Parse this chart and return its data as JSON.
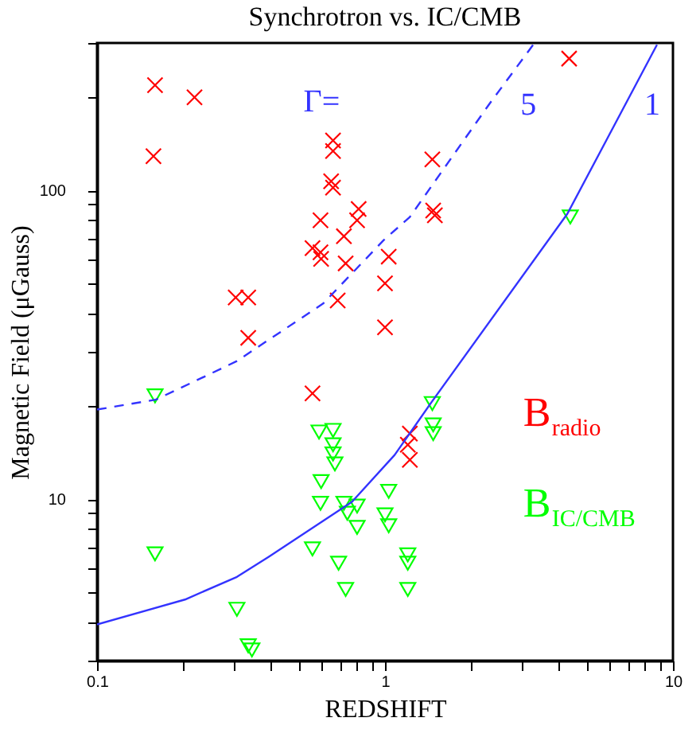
{
  "chart_data": {
    "type": "scatter",
    "title": "Synchrotron vs. IC/CMB",
    "xlabel": "REDSHIFT",
    "ylabel": "Magnetic Field (μGauss)",
    "log": "xy",
    "grid": false,
    "legend": "right",
    "xlim": [
      0.1,
      10
    ],
    "ylim": [
      3,
      300
    ],
    "xticks": [
      0.1,
      {
        "value": 0.2,
        "label": null
      },
      {
        "value": 0.3,
        "label": null
      },
      {
        "value": 0.4,
        "label": null
      },
      {
        "value": 0.5,
        "label": null
      },
      {
        "value": 0.6,
        "label": null
      },
      {
        "value": 0.7,
        "label": null
      },
      {
        "value": 0.8,
        "label": null
      },
      {
        "value": 0.9,
        "label": null
      },
      1,
      {
        "value": 2,
        "label": null
      },
      {
        "value": 3,
        "label": null
      },
      {
        "value": 4,
        "label": null
      },
      {
        "value": 5,
        "label": null
      },
      {
        "value": 6,
        "label": null
      },
      {
        "value": 7,
        "label": null
      },
      {
        "value": 8,
        "label": null
      },
      {
        "value": 9,
        "label": null
      },
      10
    ],
    "yticks": [
      {
        "value": 3,
        "label": null
      },
      {
        "value": 4,
        "label": null
      },
      {
        "value": 5,
        "label": null
      },
      {
        "value": 6,
        "label": null
      },
      {
        "value": 7,
        "label": null
      },
      {
        "value": 8,
        "label": null
      },
      {
        "value": 9,
        "label": null
      },
      10,
      {
        "value": 20,
        "label": null
      },
      {
        "value": 30,
        "label": null
      },
      {
        "value": 40,
        "label": null
      },
      {
        "value": 50,
        "label": null
      },
      {
        "value": 60,
        "label": null
      },
      {
        "value": 70,
        "label": null
      },
      {
        "value": 80,
        "label": null
      },
      {
        "value": 90,
        "label": null
      },
      100,
      {
        "value": 200,
        "label": null
      },
      {
        "value": 300,
        "label": null
      }
    ],
    "series": [
      {
        "name": "B$_{radio}$",
        "marker": "cross",
        "color": "#ff0000",
        "x": [
          0.159,
          0.157,
          0.218,
          0.303,
          0.335,
          0.335,
          0.66,
          0.66,
          0.65,
          0.66,
          0.597,
          0.56,
          0.597,
          0.6,
          0.72,
          0.81,
          0.8,
          0.73,
          0.685,
          1.03,
          1.0,
          1.0,
          1.46,
          1.47,
          1.49,
          4.36,
          0.56,
          1.22,
          1.22,
          1.2
        ],
        "values": [
          219,
          129,
          200,
          45,
          45,
          33.3,
          145,
          134,
          107,
          102,
          80,
          65,
          63,
          60,
          71,
          87,
          80,
          58,
          44,
          61,
          50,
          36,
          126,
          86,
          83,
          267,
          22,
          16.3,
          13.4,
          15
        ]
      },
      {
        "name": "B$_{IC/CMB}$",
        "marker": "triangle",
        "color": "#00ff00",
        "x": [
          0.159,
          0.159,
          0.306,
          0.335,
          0.345,
          0.59,
          0.66,
          0.66,
          0.66,
          0.67,
          0.6,
          0.597,
          0.72,
          0.8,
          0.8,
          0.74,
          0.56,
          0.69,
          0.73,
          1.03,
          1.0,
          1.03,
          1.2,
          1.2,
          1.2,
          1.46,
          1.47,
          1.47,
          4.4
        ],
        "values": [
          21.6,
          6.65,
          4.4,
          3.35,
          3.25,
          16.5,
          16.7,
          15,
          14,
          13,
          11.4,
          9.7,
          9.7,
          9.5,
          8.1,
          9,
          6.9,
          6.2,
          5.1,
          10.6,
          8.9,
          8.2,
          6.6,
          6.2,
          5.1,
          20.4,
          17.4,
          16.3,
          82
        ]
      },
      {
        "name": "5",
        "type": "line",
        "marker": "none",
        "line_style": "dashed",
        "color": "#3333ff",
        "x": [
          0.1,
          0.16,
          0.229,
          0.306,
          0.61,
          0.99,
          1.22,
          2.3,
          3.27
        ],
        "values": [
          19.5,
          21,
          24.6,
          28,
          43,
          69,
          82,
          190,
          296
        ]
      },
      {
        "name": "1",
        "type": "line",
        "marker": "none",
        "line_style": "solid",
        "color": "#3333ff",
        "x": [
          0.1,
          0.202,
          0.306,
          0.394,
          0.768,
          1.08,
          1.45,
          4.3,
          8.8
        ],
        "values": [
          3.93,
          4.73,
          5.6,
          6.5,
          9.8,
          13.9,
          20.6,
          84,
          296
        ]
      }
    ],
    "annotations": [
      "Γ="
    ]
  }
}
